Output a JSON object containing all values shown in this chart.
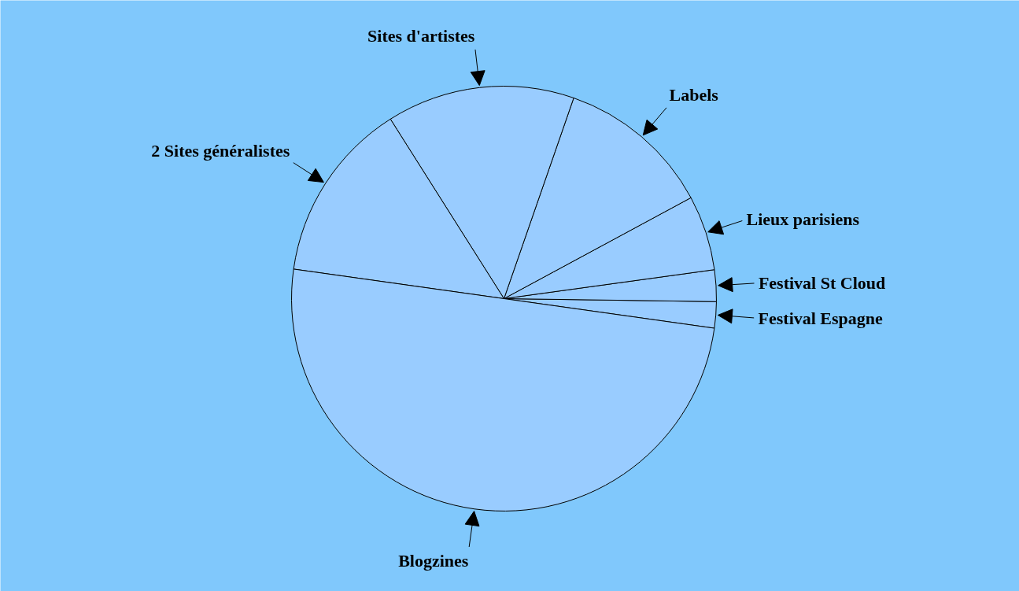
{
  "chart_data": {
    "type": "pie",
    "categories": [
      "Festival Espagne",
      "Festival St Cloud",
      "Lieux parisiens",
      "Labels",
      "Sites d'artistes",
      "2 Sites généralistes",
      "Blogzines"
    ],
    "values": [
      2.0,
      2.4,
      5.7,
      11.8,
      14.3,
      13.8,
      50
    ],
    "colors": [
      "#99ccff",
      "#99ccff",
      "#99ccff",
      "#99ccff",
      "#99ccff",
      "#99ccff",
      "#99ccff"
    ]
  }
}
